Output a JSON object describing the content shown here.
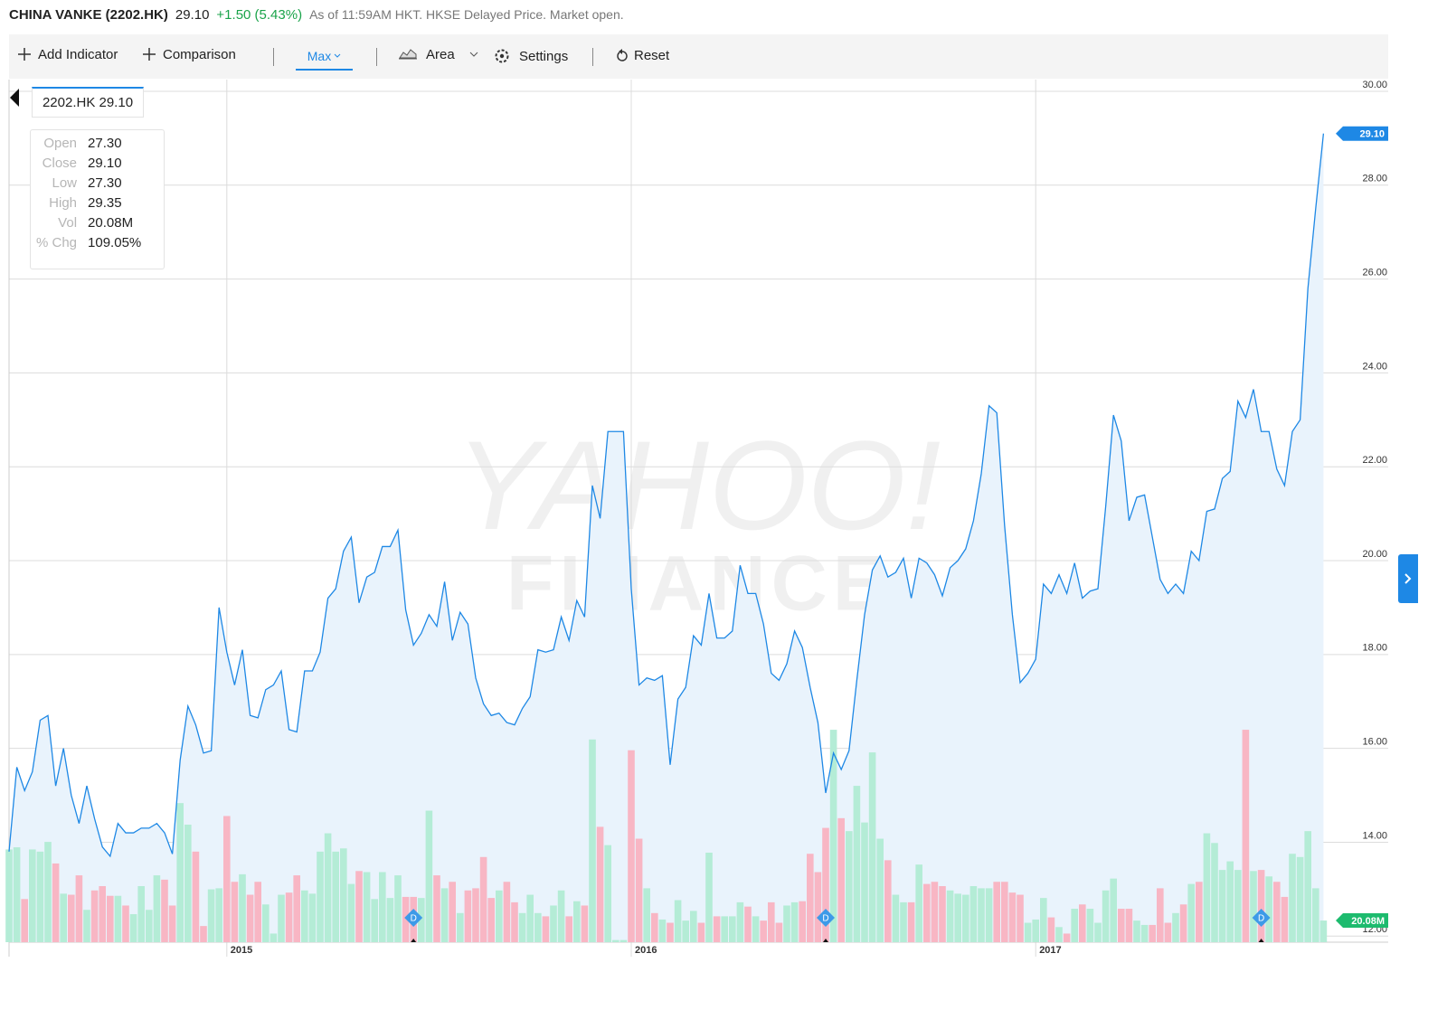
{
  "header": {
    "title": "CHINA VANKE (2202.HK)",
    "price": "29.10",
    "change": "+1.50 (5.43%)",
    "status": "As of 11:59AM HKT. HKSE Delayed Price. Market open."
  },
  "toolbar": {
    "add_indicator": "Add Indicator",
    "comparison": "Comparison",
    "range": "Max",
    "chart_type": "Area",
    "settings": "Settings",
    "reset": "Reset"
  },
  "tooltip": {
    "label": "2202.HK 29.10",
    "rows": [
      [
        "Open",
        "27.30"
      ],
      [
        "Close",
        "29.10"
      ],
      [
        "Low",
        "27.30"
      ],
      [
        "High",
        "29.35"
      ],
      [
        "Vol",
        "20.08M"
      ],
      [
        "% Chg",
        "109.05%"
      ]
    ]
  },
  "chart_data": {
    "type": "area",
    "watermark": [
      "YAHOO!",
      "FINANCE"
    ],
    "categories": [
      null,
      null,
      null,
      null,
      null,
      null,
      null,
      null,
      null,
      null,
      null,
      null,
      null,
      null,
      null,
      null,
      null,
      null,
      null,
      null,
      null,
      null,
      null,
      null,
      null,
      null,
      null,
      null,
      "2015",
      null,
      null,
      null,
      null,
      null,
      null,
      null,
      null,
      null,
      null,
      null,
      null,
      null,
      null,
      null,
      null,
      null,
      null,
      null,
      null,
      null,
      null,
      null,
      null,
      null,
      null,
      null,
      null,
      null,
      null,
      null,
      null,
      null,
      null,
      null,
      null,
      null,
      null,
      null,
      null,
      null,
      null,
      null,
      null,
      null,
      null,
      null,
      null,
      null,
      null,
      null,
      "2016",
      null,
      null,
      null,
      null,
      null,
      null,
      null,
      null,
      null,
      null,
      null,
      null,
      null,
      null,
      null,
      null,
      null,
      null,
      null,
      null,
      null,
      null,
      null,
      null,
      null,
      null,
      null,
      null,
      null,
      null,
      null,
      null,
      null,
      null,
      null,
      null,
      null,
      null,
      null,
      null,
      null,
      null,
      null,
      null,
      null,
      null,
      null,
      null,
      null,
      null,
      null,
      "2017",
      null,
      null,
      null,
      null,
      null,
      null,
      null,
      null,
      null,
      null,
      null,
      null,
      null,
      null,
      null,
      null,
      null,
      null,
      null,
      null,
      null,
      null,
      null,
      null,
      null,
      null,
      null,
      null,
      null,
      null,
      null,
      null,
      null,
      null,
      null,
      null,
      null
    ],
    "series": [
      {
        "color": "#1e88e5",
        "fill": "#e9f3fc",
        "values": [
          13.8,
          15.6,
          15.1,
          15.5,
          16.6,
          16.7,
          15.2,
          16.0,
          15.0,
          14.4,
          15.2,
          14.5,
          13.9,
          13.7,
          14.4,
          14.2,
          14.2,
          14.3,
          14.3,
          14.4,
          14.2,
          13.75,
          15.75,
          16.9,
          16.5,
          15.9,
          15.95,
          19.0,
          18.05,
          17.35,
          18.1,
          16.7,
          16.65,
          17.25,
          17.35,
          17.65,
          16.4,
          16.35,
          17.65,
          17.65,
          18.05,
          19.2,
          19.4,
          20.2,
          20.5,
          19.1,
          19.65,
          19.75,
          20.3,
          20.3,
          20.65,
          18.95,
          18.2,
          18.45,
          18.85,
          18.6,
          19.55,
          18.3,
          18.9,
          18.65,
          17.5,
          16.95,
          16.7,
          16.75,
          16.55,
          16.5,
          16.85,
          17.1,
          18.1,
          18.05,
          18.1,
          18.8,
          18.3,
          19.15,
          18.8,
          21.6,
          20.9,
          22.75,
          22.75,
          22.75,
          19.4,
          17.35,
          17.5,
          17.45,
          17.55,
          15.65,
          17.05,
          17.3,
          18.4,
          18.2,
          19.3,
          18.35,
          18.35,
          18.5,
          19.9,
          19.3,
          19.3,
          18.65,
          17.6,
          17.45,
          17.8,
          18.5,
          18.15,
          17.3,
          16.55,
          15.05,
          15.9,
          15.55,
          15.95,
          17.45,
          18.85,
          19.8,
          20.1,
          19.65,
          19.75,
          20.05,
          19.2,
          20.05,
          19.95,
          19.7,
          19.25,
          19.85,
          20.0,
          20.25,
          20.85,
          21.85,
          23.3,
          23.15,
          20.75,
          18.85,
          17.4,
          17.6,
          17.9,
          19.5,
          19.3,
          19.7,
          19.3,
          19.95,
          19.2,
          19.35,
          19.4,
          21.15,
          23.1,
          22.55,
          20.85,
          21.35,
          21.4,
          20.5,
          19.6,
          19.3,
          19.5,
          19.3,
          20.2,
          20.0,
          21.05,
          21.1,
          21.75,
          21.9,
          23.4,
          23.05,
          23.65,
          22.75,
          22.75,
          21.95,
          21.6,
          22.75,
          23.0,
          25.8,
          27.5,
          29.1
        ]
      },
      {
        "axis": "y2",
        "up_color": "#b4ecd6",
        "down_color": "#f8b6c4",
        "values": [
          86,
          88,
          40,
          86,
          84,
          93,
          73,
          45,
          44,
          62,
          30,
          48,
          52,
          43,
          43,
          34,
          26,
          52,
          30,
          62,
          58,
          34,
          129,
          109,
          84,
          15,
          49,
          50,
          117,
          56,
          63,
          44,
          56,
          35,
          8,
          44,
          46,
          62,
          48,
          45,
          84,
          101,
          84,
          87,
          54,
          66,
          65,
          40,
          65,
          41,
          62,
          42,
          42,
          41,
          122,
          62,
          50,
          56,
          27,
          48,
          50,
          79,
          41,
          48,
          56,
          37,
          27,
          44,
          27,
          24,
          34,
          48,
          24,
          38,
          34,
          188,
          107,
          90,
          2,
          2,
          178,
          96,
          50,
          27,
          21,
          18,
          39,
          20,
          29,
          18,
          83,
          24,
          24,
          24,
          37,
          33,
          24,
          20,
          37,
          18,
          34,
          37,
          38,
          82,
          65,
          106,
          197,
          115,
          103,
          145,
          111,
          176,
          96,
          76,
          44,
          37,
          37,
          72,
          54,
          56,
          52,
          48,
          45,
          44,
          52,
          50,
          50,
          56,
          56,
          46,
          44,
          18,
          21,
          41,
          23,
          14,
          8,
          31,
          35,
          31,
          18,
          48,
          59,
          31,
          31,
          20,
          16,
          16,
          50,
          18,
          27,
          35,
          54,
          56,
          101,
          92,
          67,
          75,
          67,
          197,
          66,
          67,
          61,
          56,
          42,
          82,
          79,
          103,
          50,
          20.08
        ]
      }
    ],
    "ylim": [
      11.87,
      30.25
    ],
    "yticks": [
      {
        "value": 12,
        "label": "12.00"
      },
      {
        "value": 14,
        "label": "14.00"
      },
      {
        "value": 16,
        "label": "16.00"
      },
      {
        "value": 18,
        "label": "18.00"
      },
      {
        "value": 20,
        "label": "20.00"
      },
      {
        "value": 22,
        "label": "22.00"
      },
      {
        "value": 24,
        "label": "24.00"
      },
      {
        "value": 26,
        "label": "26.00"
      },
      {
        "value": 28,
        "label": "28.00"
      },
      {
        "value": 30,
        "label": "30.00"
      }
    ],
    "y2lim": [
      0,
      800
    ],
    "grid": true,
    "events": [
      {
        "at": 52,
        "label": "D"
      },
      {
        "at": 105,
        "label": "D"
      },
      {
        "at": 161,
        "label": "D"
      }
    ]
  }
}
